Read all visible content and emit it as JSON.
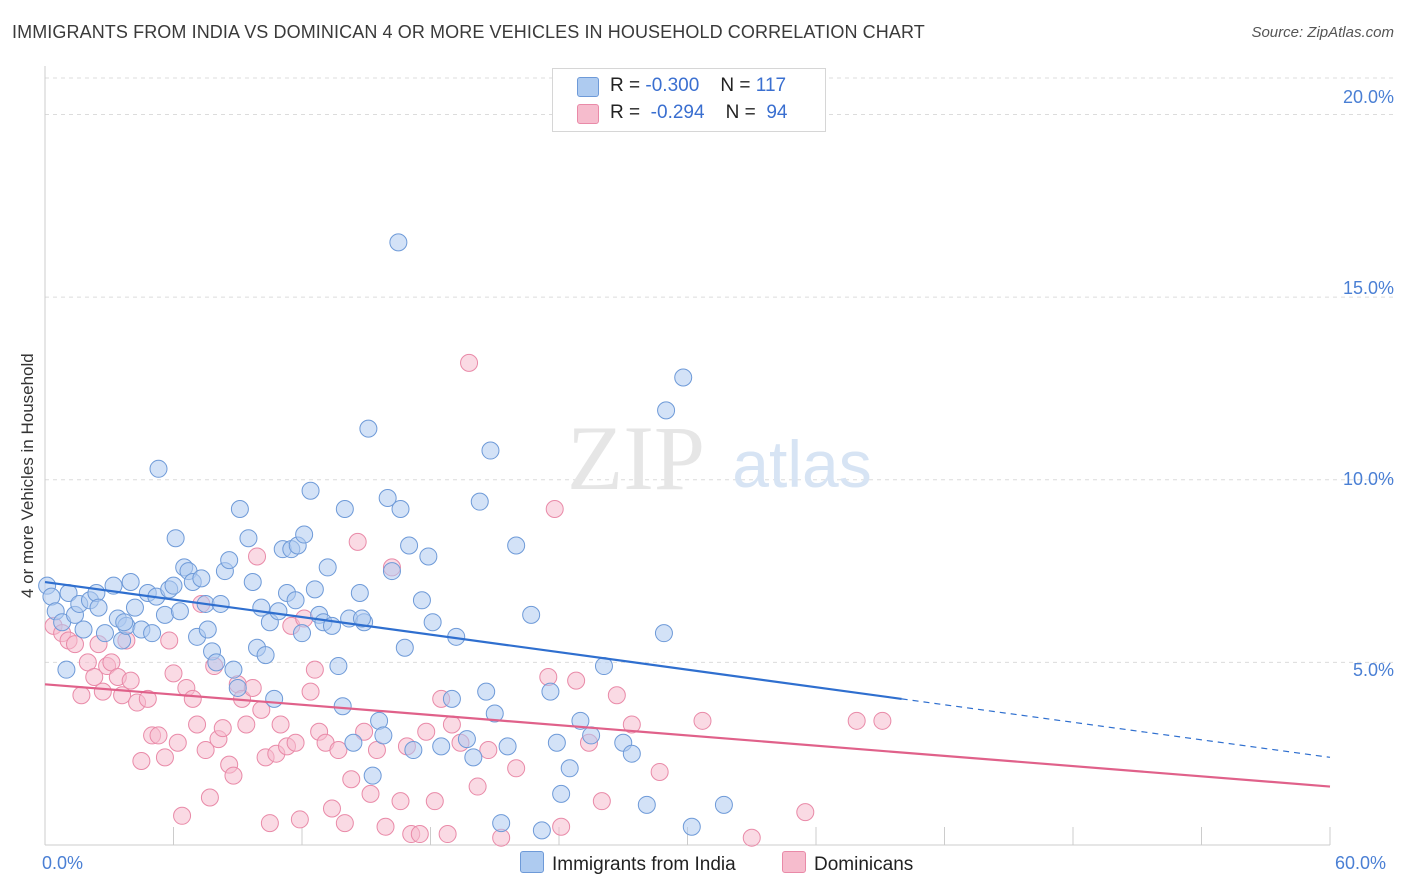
{
  "title": "IMMIGRANTS FROM INDIA VS DOMINICAN 4 OR MORE VEHICLES IN HOUSEHOLD CORRELATION CHART",
  "source": "Source: ZipAtlas.com",
  "watermark": {
    "zip": "ZIP",
    "atlas": "atlas"
  },
  "legend": {
    "rows": [
      {
        "r_label": "R =",
        "r_value": "-0.300",
        "n_label": "N =",
        "n_value": "117"
      },
      {
        "r_label": "R =",
        "r_value": "-0.294",
        "n_label": "N =",
        "n_value": "94"
      }
    ]
  },
  "colors": {
    "india_fill": "#aecbf0",
    "india_stroke": "#6e9ad8",
    "india_line": "#2f6fcf",
    "dominican_fill": "#f6bccd",
    "dominican_stroke": "#e98aa8",
    "dominican_line": "#e0618a",
    "tick_text": "#4a7fd4",
    "grid": "#dcdcdc"
  },
  "chart_data": {
    "type": "scatter",
    "title": "IMMIGRANTS FROM INDIA VS DOMINICAN 4 OR MORE VEHICLES IN HOUSEHOLD CORRELATION CHART",
    "xlabel": "",
    "ylabel": "4 or more Vehicles in Household",
    "xlim": [
      0,
      60
    ],
    "ylim": [
      0,
      21
    ],
    "x_tick_labels": [
      "0.0%",
      "60.0%"
    ],
    "y_ticks": [
      5,
      10,
      15,
      20
    ],
    "y_tick_labels": [
      "5.0%",
      "10.0%",
      "15.0%",
      "20.0%"
    ],
    "grid": true,
    "legend_position": "bottom-center",
    "series": [
      {
        "name": "Immigrants from India",
        "r": -0.3,
        "n": 117,
        "trend": {
          "x0": 0,
          "y0": 7.2,
          "x1": 60,
          "y1": 2.4,
          "solid_until_x": 40
        },
        "points": [
          [
            0.1,
            7.1
          ],
          [
            0.3,
            6.8
          ],
          [
            0.5,
            6.4
          ],
          [
            0.8,
            6.1
          ],
          [
            1.0,
            4.8
          ],
          [
            1.1,
            6.9
          ],
          [
            1.4,
            6.3
          ],
          [
            1.6,
            6.6
          ],
          [
            1.8,
            5.9
          ],
          [
            2.1,
            6.7
          ],
          [
            2.4,
            6.9
          ],
          [
            2.8,
            5.8
          ],
          [
            3.2,
            7.1
          ],
          [
            3.4,
            6.2
          ],
          [
            3.6,
            5.6
          ],
          [
            3.8,
            6.0
          ],
          [
            4.0,
            7.2
          ],
          [
            4.2,
            6.5
          ],
          [
            4.5,
            5.9
          ],
          [
            4.8,
            6.9
          ],
          [
            5.0,
            5.8
          ],
          [
            5.2,
            6.8
          ],
          [
            5.3,
            10.3
          ],
          [
            5.6,
            6.3
          ],
          [
            5.8,
            7.0
          ],
          [
            6.0,
            7.1
          ],
          [
            6.1,
            8.4
          ],
          [
            6.3,
            6.4
          ],
          [
            6.5,
            7.6
          ],
          [
            6.7,
            7.5
          ],
          [
            6.9,
            7.2
          ],
          [
            7.1,
            5.7
          ],
          [
            7.3,
            7.3
          ],
          [
            7.5,
            6.6
          ],
          [
            7.6,
            5.9
          ],
          [
            7.8,
            5.3
          ],
          [
            8.0,
            5.0
          ],
          [
            8.2,
            6.6
          ],
          [
            8.4,
            7.5
          ],
          [
            8.6,
            7.8
          ],
          [
            8.8,
            4.8
          ],
          [
            9.0,
            4.3
          ],
          [
            9.1,
            9.2
          ],
          [
            9.5,
            8.4
          ],
          [
            9.7,
            7.2
          ],
          [
            9.9,
            5.4
          ],
          [
            10.1,
            6.5
          ],
          [
            10.3,
            5.2
          ],
          [
            10.5,
            6.1
          ],
          [
            10.7,
            4.0
          ],
          [
            10.9,
            6.4
          ],
          [
            11.1,
            8.1
          ],
          [
            11.3,
            6.9
          ],
          [
            11.5,
            8.1
          ],
          [
            11.7,
            6.7
          ],
          [
            11.8,
            8.2
          ],
          [
            12.0,
            5.8
          ],
          [
            12.1,
            8.5
          ],
          [
            12.4,
            9.7
          ],
          [
            12.6,
            7.0
          ],
          [
            12.8,
            6.3
          ],
          [
            13.0,
            6.1
          ],
          [
            13.2,
            7.6
          ],
          [
            13.4,
            6.0
          ],
          [
            13.7,
            4.9
          ],
          [
            13.9,
            3.8
          ],
          [
            14.0,
            9.2
          ],
          [
            14.2,
            6.2
          ],
          [
            14.4,
            2.8
          ],
          [
            14.7,
            6.9
          ],
          [
            14.9,
            6.1
          ],
          [
            15.1,
            11.4
          ],
          [
            15.3,
            1.9
          ],
          [
            15.6,
            3.4
          ],
          [
            15.8,
            3.0
          ],
          [
            16.0,
            9.5
          ],
          [
            16.2,
            7.5
          ],
          [
            16.6,
            9.2
          ],
          [
            16.8,
            5.4
          ],
          [
            17.0,
            8.2
          ],
          [
            17.2,
            2.6
          ],
          [
            17.6,
            6.7
          ],
          [
            17.9,
            7.9
          ],
          [
            18.1,
            6.1
          ],
          [
            18.5,
            2.7
          ],
          [
            19.0,
            4.0
          ],
          [
            19.2,
            5.7
          ],
          [
            19.7,
            2.9
          ],
          [
            20.0,
            2.4
          ],
          [
            20.3,
            9.4
          ],
          [
            20.6,
            4.2
          ],
          [
            20.8,
            10.8
          ],
          [
            21.0,
            3.6
          ],
          [
            21.3,
            0.6
          ],
          [
            21.6,
            2.7
          ],
          [
            22.0,
            8.2
          ],
          [
            22.7,
            6.3
          ],
          [
            23.2,
            0.4
          ],
          [
            23.6,
            4.2
          ],
          [
            23.9,
            2.8
          ],
          [
            24.1,
            1.4
          ],
          [
            24.5,
            2.1
          ],
          [
            25.0,
            3.4
          ],
          [
            25.5,
            3.0
          ],
          [
            26.1,
            4.9
          ],
          [
            27.0,
            2.8
          ],
          [
            27.4,
            2.5
          ],
          [
            28.1,
            1.1
          ],
          [
            28.9,
            5.8
          ],
          [
            29.0,
            11.9
          ],
          [
            29.8,
            12.8
          ],
          [
            30.2,
            0.5
          ],
          [
            31.7,
            1.1
          ],
          [
            16.5,
            16.5
          ],
          [
            14.8,
            6.2
          ],
          [
            3.7,
            6.1
          ],
          [
            2.5,
            6.5
          ]
        ]
      },
      {
        "name": "Dominicans",
        "r": -0.294,
        "n": 94,
        "trend": {
          "x0": 0,
          "y0": 4.4,
          "x1": 60,
          "y1": 1.6
        },
        "points": [
          [
            0.4,
            6.0
          ],
          [
            0.8,
            5.8
          ],
          [
            1.1,
            5.6
          ],
          [
            1.4,
            5.5
          ],
          [
            1.7,
            4.1
          ],
          [
            2.0,
            5.0
          ],
          [
            2.3,
            4.6
          ],
          [
            2.5,
            5.5
          ],
          [
            2.7,
            4.2
          ],
          [
            2.9,
            4.9
          ],
          [
            3.1,
            5.0
          ],
          [
            3.4,
            4.6
          ],
          [
            3.6,
            4.1
          ],
          [
            3.8,
            5.6
          ],
          [
            4.0,
            4.5
          ],
          [
            4.3,
            3.9
          ],
          [
            4.5,
            2.3
          ],
          [
            4.8,
            4.0
          ],
          [
            5.0,
            3.0
          ],
          [
            5.3,
            3.0
          ],
          [
            5.6,
            2.4
          ],
          [
            5.8,
            5.6
          ],
          [
            6.0,
            4.7
          ],
          [
            6.2,
            2.8
          ],
          [
            6.4,
            0.8
          ],
          [
            6.6,
            4.3
          ],
          [
            6.9,
            4.0
          ],
          [
            7.1,
            3.3
          ],
          [
            7.3,
            6.6
          ],
          [
            7.5,
            2.6
          ],
          [
            7.7,
            1.3
          ],
          [
            7.9,
            4.9
          ],
          [
            8.1,
            2.9
          ],
          [
            8.3,
            3.2
          ],
          [
            8.6,
            2.2
          ],
          [
            8.8,
            1.9
          ],
          [
            9.0,
            4.4
          ],
          [
            9.2,
            4.0
          ],
          [
            9.4,
            3.3
          ],
          [
            9.7,
            4.3
          ],
          [
            9.9,
            7.9
          ],
          [
            10.1,
            3.7
          ],
          [
            10.3,
            2.4
          ],
          [
            10.5,
            0.6
          ],
          [
            10.8,
            2.5
          ],
          [
            11.0,
            3.3
          ],
          [
            11.3,
            2.7
          ],
          [
            11.5,
            6.0
          ],
          [
            11.7,
            2.8
          ],
          [
            11.9,
            0.7
          ],
          [
            12.1,
            6.2
          ],
          [
            12.4,
            4.2
          ],
          [
            12.6,
            4.8
          ],
          [
            12.8,
            3.1
          ],
          [
            13.1,
            2.8
          ],
          [
            13.4,
            1.0
          ],
          [
            13.7,
            2.6
          ],
          [
            14.0,
            0.6
          ],
          [
            14.3,
            1.8
          ],
          [
            14.6,
            8.3
          ],
          [
            14.9,
            3.1
          ],
          [
            15.2,
            1.4
          ],
          [
            15.5,
            2.6
          ],
          [
            15.9,
            0.5
          ],
          [
            16.2,
            7.6
          ],
          [
            16.6,
            1.2
          ],
          [
            16.9,
            2.7
          ],
          [
            17.1,
            0.3
          ],
          [
            17.5,
            0.3
          ],
          [
            17.8,
            3.1
          ],
          [
            18.2,
            1.2
          ],
          [
            18.5,
            4.0
          ],
          [
            18.8,
            0.3
          ],
          [
            19.0,
            3.3
          ],
          [
            19.4,
            2.8
          ],
          [
            19.8,
            13.2
          ],
          [
            20.2,
            1.6
          ],
          [
            20.7,
            2.6
          ],
          [
            21.3,
            0.2
          ],
          [
            22.0,
            2.1
          ],
          [
            23.5,
            4.6
          ],
          [
            23.8,
            9.2
          ],
          [
            24.1,
            0.5
          ],
          [
            24.8,
            4.5
          ],
          [
            25.4,
            2.8
          ],
          [
            26.0,
            1.2
          ],
          [
            26.7,
            4.1
          ],
          [
            27.4,
            3.3
          ],
          [
            28.7,
            2.0
          ],
          [
            30.7,
            3.4
          ],
          [
            33.0,
            0.2
          ],
          [
            35.5,
            0.9
          ],
          [
            37.9,
            3.4
          ],
          [
            39.1,
            3.4
          ]
        ]
      }
    ]
  }
}
